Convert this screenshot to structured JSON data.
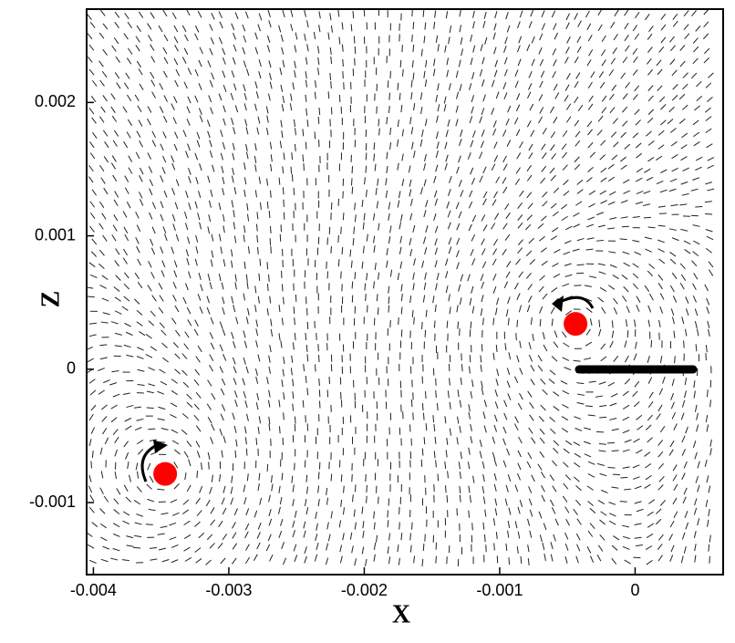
{
  "chart_data": {
    "type": "scatter",
    "x_label": "X",
    "y_label": "Z",
    "xlim": [
      -0.00405,
      0.00065
    ],
    "ylim": [
      -0.00154,
      0.0027
    ],
    "xticks": [
      -0.004,
      -0.003,
      -0.002,
      -0.001,
      0
    ],
    "yticks": [
      -0.001,
      0,
      0.001,
      0.002
    ],
    "series": [
      {
        "color": "#ff0000",
        "x": [
          -0.00347,
          -0.00044
        ],
        "values": [
          -0.000785,
          0.00034
        ]
      }
    ]
  }
}
